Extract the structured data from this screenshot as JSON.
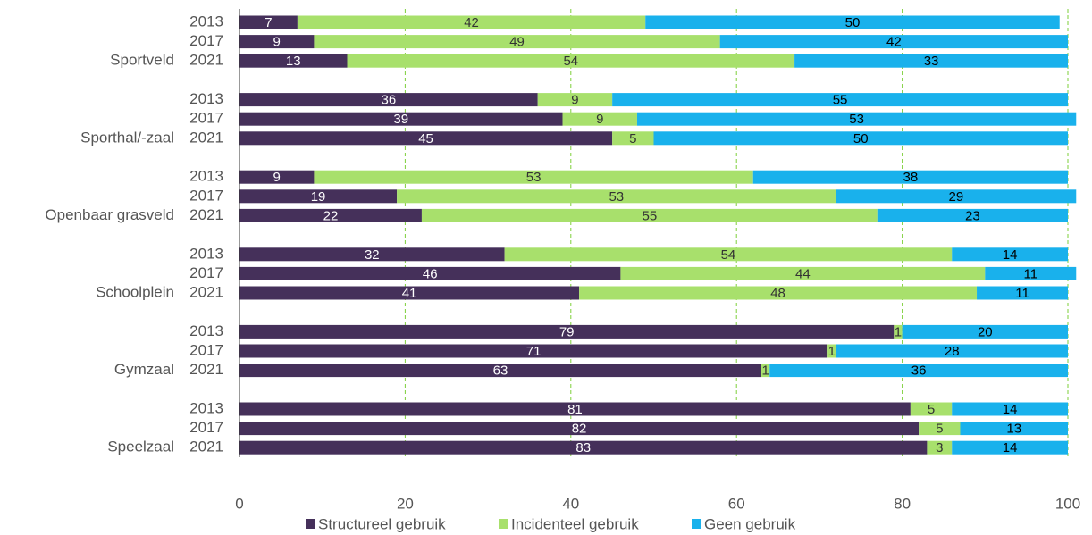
{
  "chart_data": {
    "type": "stacked-barh",
    "groups": [
      "Sportveld",
      "Sporthal/-zaal",
      "Openbaar grasveld",
      "Schoolplein",
      "Gymzaal",
      "Speelzaal"
    ],
    "categories": [
      "2013",
      "2017",
      "2021",
      "2013",
      "2017",
      "2021",
      "2013",
      "2017",
      "2021",
      "2013",
      "2017",
      "2021",
      "2013",
      "2017",
      "2021",
      "2013",
      "2017",
      "2021"
    ],
    "series": [
      {
        "name": "Structureel gebruik",
        "color": "#45305a",
        "label_color": "#ffffff",
        "values": [
          7,
          9,
          13,
          36,
          39,
          45,
          9,
          19,
          22,
          32,
          46,
          41,
          79,
          71,
          63,
          81,
          82,
          83
        ]
      },
      {
        "name": "Incidenteel gebruik",
        "color": "#a8e06c",
        "label_color": "#333333",
        "values": [
          42,
          49,
          54,
          9,
          9,
          5,
          53,
          53,
          55,
          54,
          44,
          48,
          1,
          1,
          1,
          5,
          5,
          3
        ]
      },
      {
        "name": "Geen gebruik",
        "color": "#19b1ec",
        "label_color": "#000000",
        "values": [
          50,
          42,
          33,
          55,
          53,
          50,
          38,
          29,
          23,
          14,
          11,
          11,
          20,
          28,
          36,
          14,
          13,
          14
        ]
      }
    ],
    "xlim": [
      0,
      100
    ],
    "xticks": [
      0,
      20,
      40,
      60,
      80,
      100
    ],
    "grid": true,
    "grid_color": "#7dcf3a",
    "legend": "bottom"
  }
}
